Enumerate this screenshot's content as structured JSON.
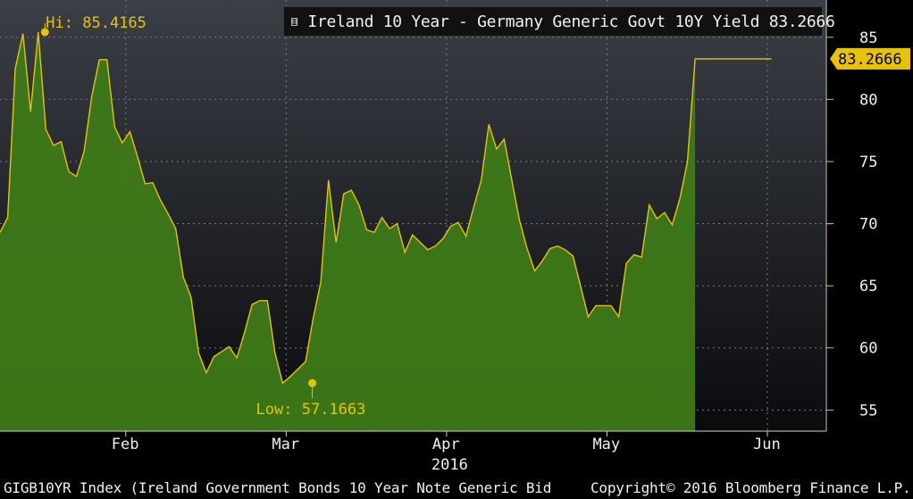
{
  "legend": {
    "toggle": "⊟",
    "label": "Ireland 10 Year - Germany Generic Govt 10Y Yield 83.2666",
    "color": "#e8c300"
  },
  "footer": {
    "index_text": "GIGB10YR Index (Ireland Government Bonds 10 Year Note Generic Bid",
    "copyright": "Copyright© 2016 Bloomberg Finance L.P."
  },
  "chart_data": {
    "type": "area",
    "title": "",
    "xlabel": "2016",
    "ylabel": "",
    "ylim": [
      53.3,
      88
    ],
    "y_ticks": [
      55,
      60,
      65,
      70,
      75,
      80,
      85
    ],
    "x_ticks": [
      {
        "label": "Feb",
        "index": 16
      },
      {
        "label": "Mar",
        "index": 37
      },
      {
        "label": "Apr",
        "index": 58
      },
      {
        "label": "May",
        "index": 79
      },
      {
        "label": "Jun",
        "index": 100
      }
    ],
    "x_year": {
      "label": "2016",
      "index": 58
    },
    "grid": true,
    "line_color": "#e8c300",
    "fill_color": "#3d7a18",
    "last_value": "83.2666",
    "high": {
      "label": "Hi: 85.4165",
      "value": 85.4165,
      "index": 6
    },
    "low": {
      "label": "Low: 57.1663",
      "value": 57.1663,
      "index": 41
    },
    "series": [
      {
        "values": [
          69.3,
          70.5,
          82.5,
          85.3,
          79.0,
          85.4165,
          77.6,
          76.3,
          76.6,
          74.2,
          73.8,
          75.8,
          80.2,
          83.2,
          83.2,
          77.8,
          76.5,
          77.4,
          75.4,
          73.2,
          73.3,
          71.9,
          70.8,
          69.6,
          65.7,
          64.1,
          59.6,
          58.0,
          59.3,
          59.7,
          60.1,
          59.2,
          61.2,
          63.5,
          63.8,
          63.8,
          59.6,
          57.1663,
          57.7,
          58.3,
          58.9,
          62.4,
          65.3,
          73.5,
          68.5,
          72.4,
          72.7,
          71.5,
          69.5,
          69.3,
          70.5,
          69.6,
          70.0,
          67.7,
          69.1,
          68.5,
          67.9,
          68.2,
          68.8,
          69.8,
          70.1,
          69.0,
          71.3,
          73.5,
          78.0,
          76.0,
          76.8,
          73.5,
          70.3,
          68.0,
          66.2,
          67.0,
          68.0,
          68.2,
          67.9,
          67.4,
          65.0,
          62.5,
          63.4,
          63.4,
          63.4,
          62.5,
          66.8,
          67.5,
          67.3,
          71.5,
          70.4,
          70.9,
          69.9,
          72.0,
          75.0,
          83.2666,
          83.2666,
          83.2666,
          83.2666,
          83.2666,
          83.2666,
          83.2666,
          83.2666,
          83.2666,
          83.2666,
          83.2666
        ]
      }
    ]
  }
}
